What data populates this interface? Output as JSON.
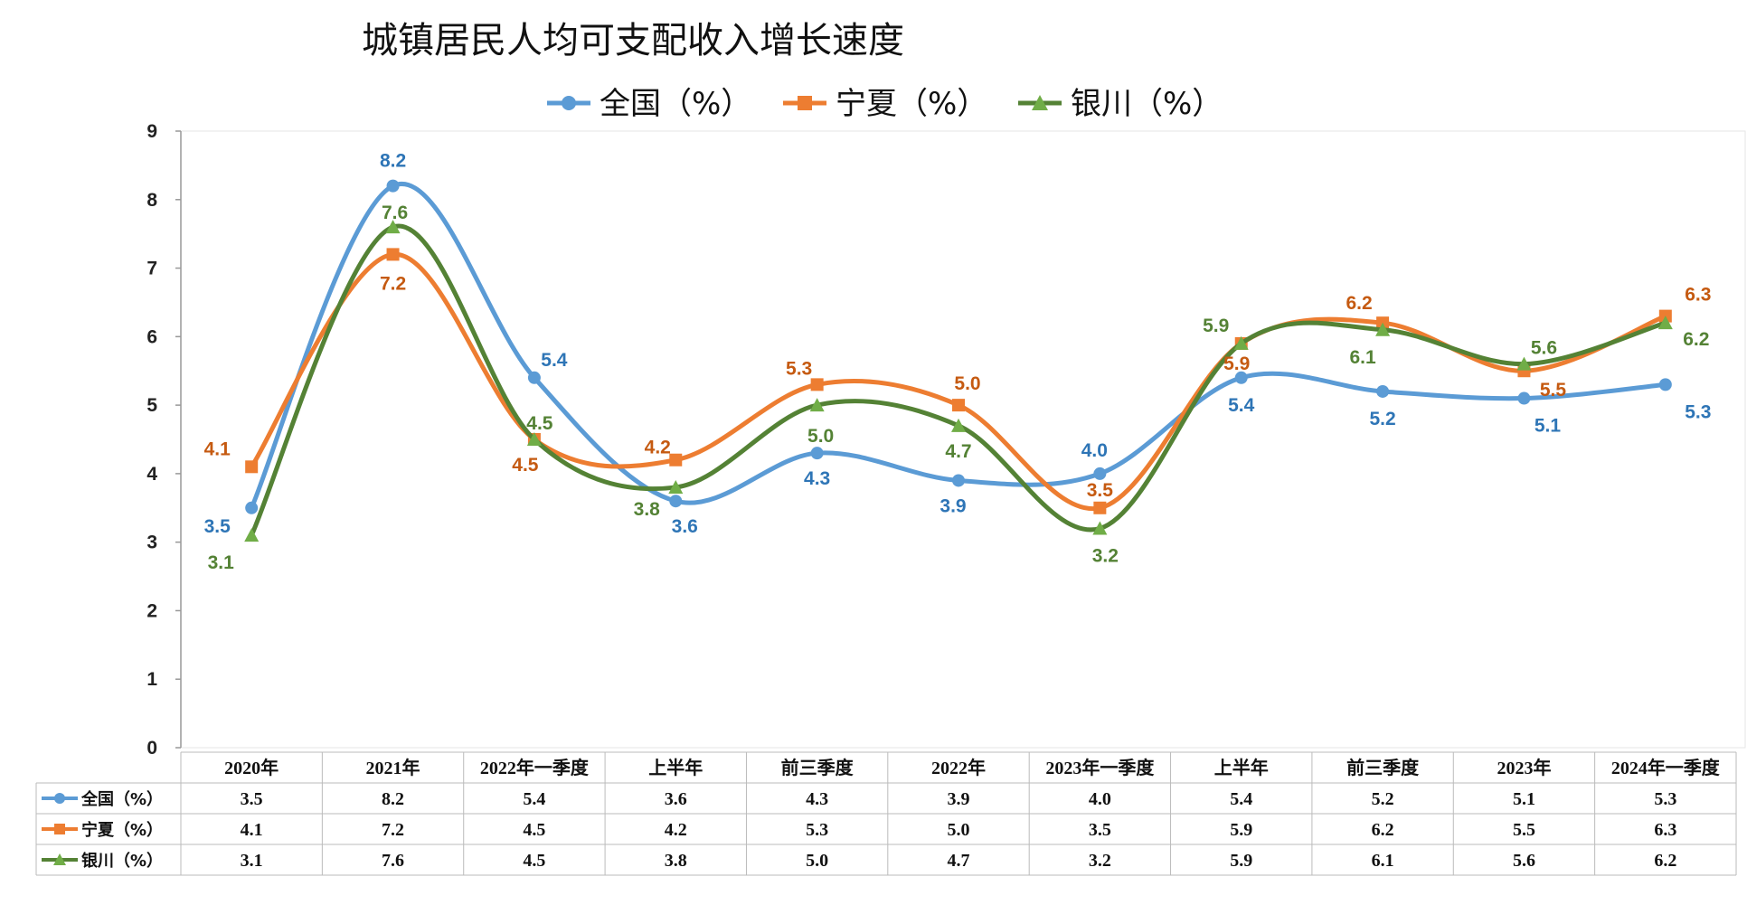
{
  "chart_data": {
    "type": "line",
    "title": "城镇居民人均可支配收入增长速度",
    "categories": [
      "2020年",
      "2021年",
      "2022年一季度",
      "上半年",
      "前三季度",
      "2022年",
      "2023年一季度",
      "上半年",
      "前三季度",
      "2023年",
      "2024年一季度"
    ],
    "series": [
      {
        "name": "全国（%）",
        "color": "#5B9BD5",
        "marker": "circle",
        "values": [
          3.5,
          8.2,
          5.4,
          3.6,
          4.3,
          3.9,
          4.0,
          5.4,
          5.2,
          5.1,
          5.3
        ]
      },
      {
        "name": "宁夏（%）",
        "color": "#ED7D31",
        "marker": "square",
        "values": [
          4.1,
          7.2,
          4.5,
          4.2,
          5.3,
          5.0,
          3.5,
          5.9,
          6.2,
          5.5,
          6.3
        ]
      },
      {
        "name": "银川（%）",
        "color": "#548235",
        "marker": "triangle",
        "marker_color": "#70AD47",
        "values": [
          3.1,
          7.6,
          4.5,
          3.8,
          5.0,
          4.7,
          3.2,
          5.9,
          6.1,
          5.6,
          6.2
        ]
      }
    ],
    "ylim": [
      0,
      9
    ],
    "yticks": [
      0,
      1,
      2,
      3,
      4,
      5,
      6,
      7,
      8,
      9
    ],
    "smooth": true,
    "grid": false,
    "legend_position": "top",
    "data_table": true
  }
}
